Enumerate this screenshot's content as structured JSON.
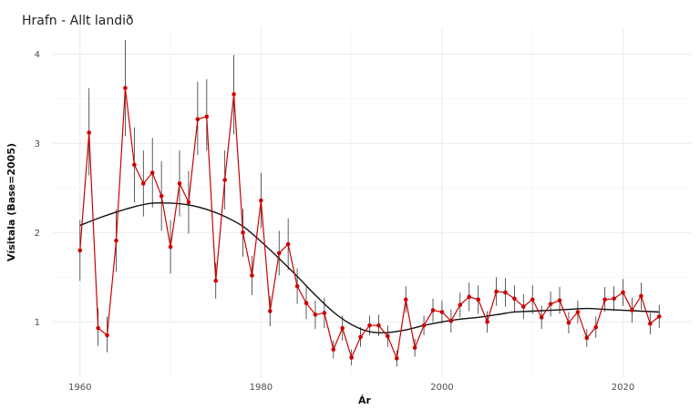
{
  "chart_data": {
    "type": "line",
    "title": "Hrafn - Allt landið",
    "xlabel": "Ár",
    "ylabel": "Vísitala (Base=2005)",
    "xlim": [
      1957,
      2027.5
    ],
    "ylim": [
      0.38,
      4.3
    ],
    "x_ticks": [
      1960,
      1980,
      2000,
      2020
    ],
    "y_ticks": [
      1,
      2,
      3,
      4
    ],
    "grid": true,
    "legend": "none",
    "colors": {
      "series": "#cc0000",
      "trend": "#111111",
      "error_bar": "#333333",
      "grid": "#ebebeb"
    },
    "series": [
      {
        "kind": "points_with_error_bars",
        "x": [
          1960,
          1961,
          1962,
          1963,
          1964,
          1965,
          1966,
          1967,
          1968,
          1969,
          1970,
          1971,
          1972,
          1973,
          1974,
          1975,
          1976,
          1977,
          1978,
          1979,
          1980,
          1981,
          1982,
          1983,
          1984,
          1985,
          1986,
          1987,
          1988,
          1989,
          1990,
          1991,
          1992,
          1993,
          1994,
          1995,
          1996,
          1997,
          1998,
          1999,
          2000,
          2001,
          2002,
          2003,
          2004,
          2005,
          2006,
          2007,
          2008,
          2009,
          2010,
          2011,
          2012,
          2013,
          2014,
          2015,
          2016,
          2017,
          2018,
          2019,
          2020,
          2021,
          2022,
          2023,
          2024
        ],
        "y": [
          1.8,
          3.12,
          0.93,
          0.85,
          1.91,
          3.62,
          2.76,
          2.55,
          2.67,
          2.41,
          1.84,
          2.55,
          2.34,
          3.27,
          3.3,
          1.46,
          2.59,
          3.55,
          2.0,
          1.52,
          2.36,
          1.12,
          1.77,
          1.87,
          1.4,
          1.21,
          1.08,
          1.1,
          0.69,
          0.93,
          0.6,
          0.83,
          0.96,
          0.96,
          0.84,
          0.59,
          1.25,
          0.71,
          0.96,
          1.13,
          1.11,
          1.01,
          1.19,
          1.28,
          1.25,
          1.0,
          1.34,
          1.33,
          1.26,
          1.17,
          1.25,
          1.05,
          1.2,
          1.24,
          0.99,
          1.11,
          0.82,
          0.94,
          1.25,
          1.26,
          1.33,
          1.13,
          1.29,
          0.98,
          1.06
        ],
        "err_low": [
          1.46,
          2.64,
          0.73,
          0.66,
          1.56,
          3.08,
          2.34,
          2.18,
          2.28,
          2.02,
          1.54,
          2.18,
          1.99,
          2.87,
          2.92,
          1.26,
          2.26,
          3.1,
          1.73,
          1.3,
          2.05,
          0.95,
          1.52,
          1.58,
          1.2,
          1.03,
          0.92,
          0.93,
          0.59,
          0.79,
          0.51,
          0.72,
          0.85,
          0.84,
          0.72,
          0.5,
          1.1,
          0.61,
          0.85,
          1.0,
          0.98,
          0.88,
          1.05,
          1.12,
          1.09,
          0.88,
          1.18,
          1.17,
          1.11,
          1.03,
          1.09,
          0.92,
          1.06,
          1.09,
          0.87,
          0.98,
          0.72,
          0.82,
          1.11,
          1.12,
          1.18,
          0.99,
          1.14,
          0.86,
          0.93
        ],
        "err_high": [
          2.14,
          3.62,
          1.15,
          1.06,
          2.26,
          4.16,
          3.18,
          2.92,
          3.06,
          2.8,
          2.14,
          2.92,
          2.69,
          3.69,
          3.72,
          1.66,
          2.92,
          3.99,
          2.27,
          1.74,
          2.67,
          1.29,
          2.02,
          2.16,
          1.6,
          1.39,
          1.24,
          1.27,
          0.79,
          1.07,
          0.69,
          0.94,
          1.07,
          1.08,
          0.96,
          0.68,
          1.4,
          0.81,
          1.07,
          1.26,
          1.24,
          1.14,
          1.33,
          1.44,
          1.41,
          1.12,
          1.5,
          1.49,
          1.41,
          1.31,
          1.41,
          1.18,
          1.34,
          1.39,
          1.11,
          1.24,
          0.92,
          1.06,
          1.39,
          1.4,
          1.48,
          1.27,
          1.44,
          1.1,
          1.19
        ]
      },
      {
        "kind": "smooth_trend",
        "x": [
          1960,
          1962,
          1964,
          1966,
          1968,
          1970,
          1972,
          1974,
          1976,
          1978,
          1980,
          1982,
          1984,
          1986,
          1988,
          1990,
          1992,
          1994,
          1996,
          1998,
          2000,
          2002,
          2004,
          2006,
          2008,
          2010,
          2012,
          2014,
          2016,
          2018,
          2020,
          2022,
          2024
        ],
        "y": [
          2.08,
          2.16,
          2.23,
          2.29,
          2.33,
          2.33,
          2.31,
          2.26,
          2.18,
          2.07,
          1.9,
          1.71,
          1.51,
          1.3,
          1.11,
          0.97,
          0.89,
          0.88,
          0.91,
          0.96,
          1.0,
          1.03,
          1.05,
          1.08,
          1.11,
          1.12,
          1.13,
          1.14,
          1.15,
          1.14,
          1.13,
          1.12,
          1.11
        ]
      }
    ]
  }
}
